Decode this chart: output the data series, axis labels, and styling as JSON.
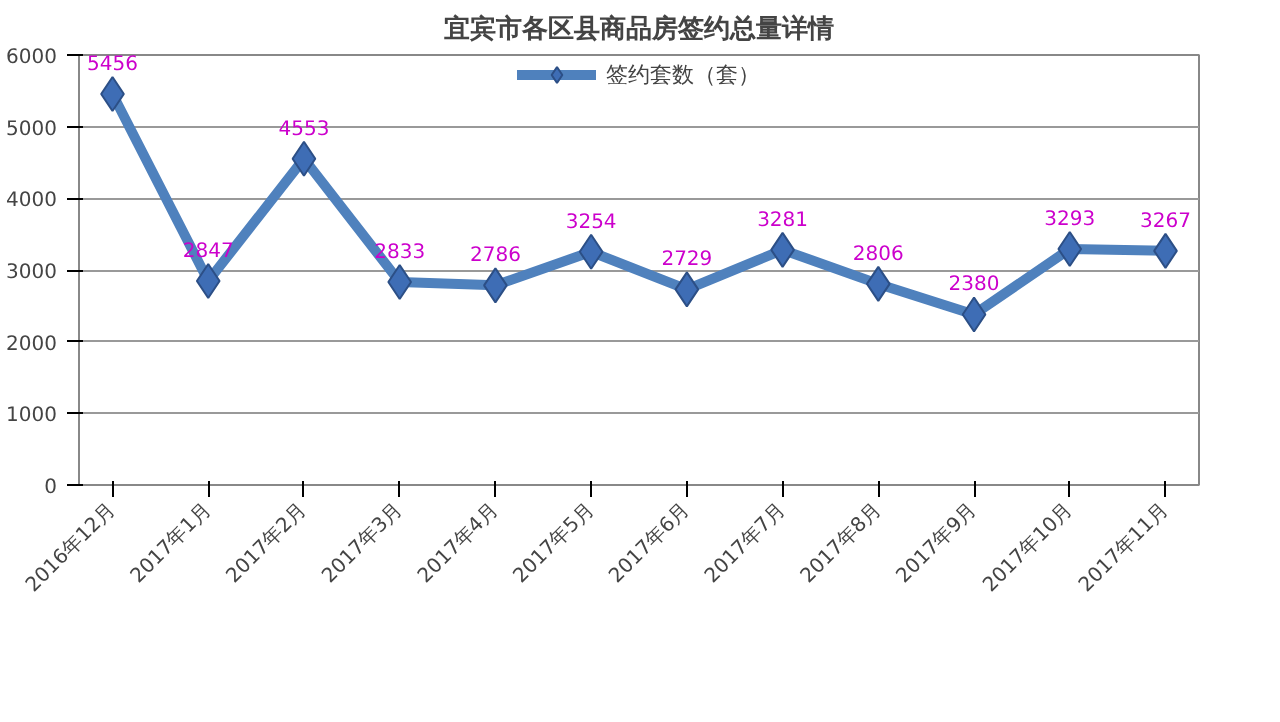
{
  "chart_data": {
    "type": "line",
    "title": "宜宾市各区县商品房签约总量详情",
    "categories": [
      "2016年12月",
      "2017年1月",
      "2017年2月",
      "2017年3月",
      "2017年4月",
      "2017年5月",
      "2017年6月",
      "2017年7月",
      "2017年8月",
      "2017年9月",
      "2017年10月",
      "2017年11月"
    ],
    "series": [
      {
        "name": "签约套数（套）",
        "color": "#4f81bd",
        "values": [
          5456,
          2847,
          4553,
          2833,
          2786,
          3254,
          2729,
          3281,
          2806,
          2380,
          3293,
          3267
        ]
      }
    ],
    "ylim": [
      0,
      6000
    ],
    "yticks": [
      0,
      1000,
      2000,
      3000,
      4000,
      5000,
      6000
    ],
    "grid": "y",
    "legend": "top",
    "marker": "diamond",
    "line_style": "solid",
    "data_labels": true
  }
}
